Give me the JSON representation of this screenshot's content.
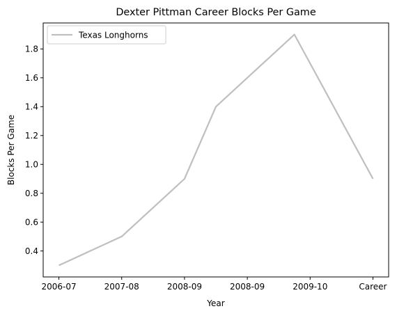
{
  "chart_data": {
    "type": "line",
    "title": "Dexter Pittman Career Blocks Per Game",
    "xlabel": "Year",
    "ylabel": "Blocks Per Game",
    "categories": [
      "2006-07",
      "2007-08",
      "2008-09",
      "2008-09",
      "2009-10",
      "Career"
    ],
    "x_values": [
      0,
      1,
      2,
      3,
      4,
      5
    ],
    "series": [
      {
        "name": "Texas Longhorns",
        "x": [
          0,
          1,
          2,
          2.5,
          3,
          4,
          5
        ],
        "values": [
          0.3,
          0.5,
          0.9,
          1.4,
          1.9,
          0.9,
          0.9
        ],
        "color": "#bfbfbf"
      }
    ],
    "point_x_positions_note": "",
    "ylim": [
      0.22,
      1.98
    ],
    "y_ticks": [
      0.4,
      0.6,
      0.8,
      1.0,
      1.2,
      1.4,
      1.6,
      1.8
    ],
    "y_tick_labels": [
      "0.4",
      "0.6",
      "0.8",
      "1.0",
      "1.2",
      "1.4",
      "1.6",
      "1.8"
    ],
    "legend_position": "top-left",
    "grid": false
  }
}
